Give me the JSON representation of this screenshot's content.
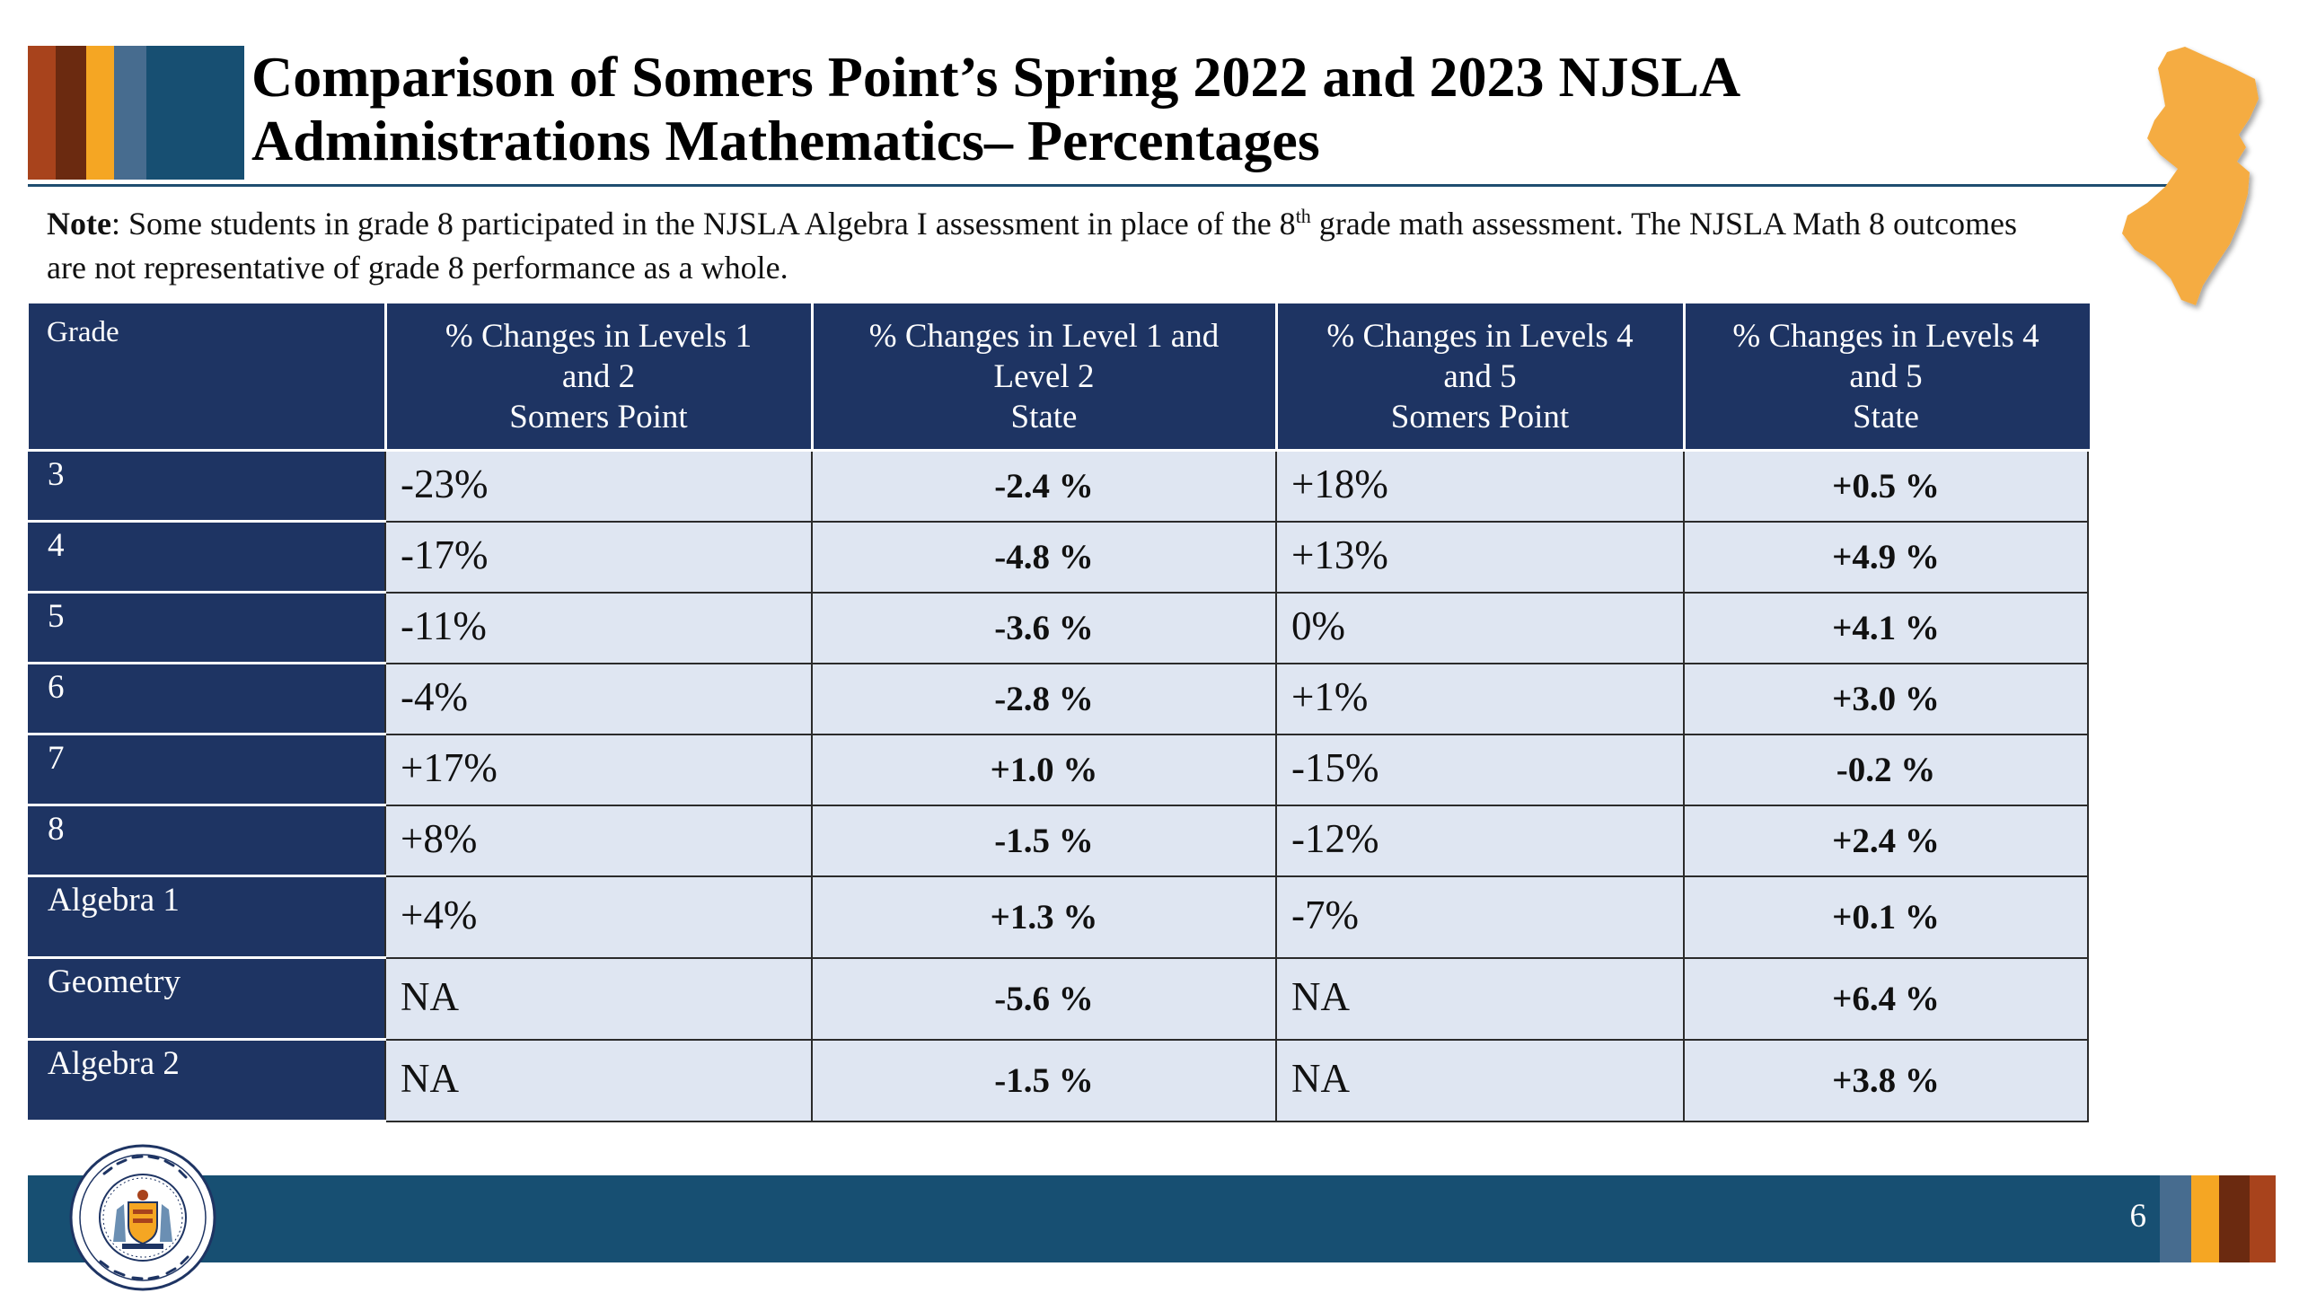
{
  "title_lines": [
    "Comparison of Somers Point’s Spring 2022 and 2023 NJSLA",
    "Administrations Mathematics– Percentages"
  ],
  "note": {
    "label": "Note",
    "text_before_sup": ": Some students in grade 8 participated in the NJSLA Algebra I assessment in place of the 8",
    "sup": "th",
    "text_after_sup": " grade math assessment. The NJSLA Math 8 outcomes are not representative of grade 8 performance as a whole."
  },
  "table": {
    "headers": [
      [
        "Grade"
      ],
      [
        "% Changes in Levels 1",
        "and 2",
        "Somers Point"
      ],
      [
        "% Changes in Level 1 and",
        "Level 2",
        "State"
      ],
      [
        "% Changes in Levels 4",
        "and 5",
        "Somers Point"
      ],
      [
        "% Changes in Levels 4",
        "and 5",
        "State"
      ]
    ],
    "rows": [
      [
        "3",
        "-23%",
        "-2.4 %",
        "+18%",
        "+0.5 %"
      ],
      [
        "4",
        "-17%",
        "-4.8 %",
        "+13%",
        "+4.9 %"
      ],
      [
        "5",
        "-11%",
        "-3.6 %",
        "0%",
        "+4.1 %"
      ],
      [
        "6",
        "-4%",
        "-2.8 %",
        "+1%",
        "+3.0 %"
      ],
      [
        "7",
        "+17%",
        "+1.0 %",
        "-15%",
        "-0.2 %"
      ],
      [
        "8",
        "+8%",
        "-1.5 %",
        "-12%",
        "+2.4 %"
      ],
      [
        "Algebra 1",
        "+4%",
        "+1.3 %",
        "-7%",
        "+0.1 %"
      ],
      [
        "Geometry",
        "NA",
        "-5.6 %",
        "NA",
        "+6.4 %"
      ],
      [
        "Algebra 2",
        "NA",
        "-1.5 %",
        "NA",
        "+3.8 %"
      ]
    ]
  },
  "footer": {
    "page_number": "6",
    "seal": {
      "outer_ring_text": "STATE OF NEW JERSEY · DEPARTMENT OF EDUCATION",
      "icon": "nj-state-seal-icon"
    }
  },
  "decor": {
    "map_icon": "new-jersey-state-map-icon",
    "colors": {
      "navy": "#1e3463",
      "teal_blue": "#174f72",
      "slate_blue": "#476c8f",
      "orange": "#f5a623",
      "rust": "#a8431c",
      "brown": "#6b2a10",
      "cell_fill": "#dfe6f2"
    }
  }
}
